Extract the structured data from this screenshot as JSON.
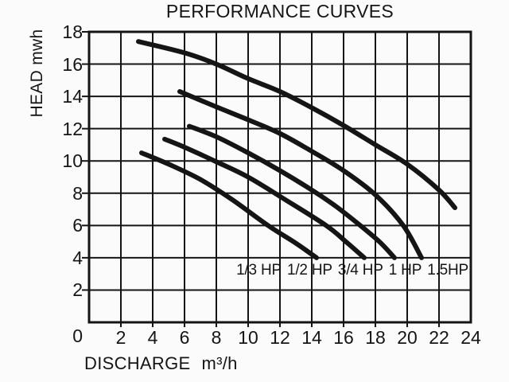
{
  "page": {
    "background": "#fbfbfb",
    "line_color": "#151515",
    "text_color": "#151515"
  },
  "chart_data": {
    "type": "line",
    "title": "PERFORMANCE CURVES",
    "xlabel": "DISCHARGE",
    "xlabel_unit": "m³/h",
    "ylabel": "HEAD mwh",
    "xlim": [
      0,
      24
    ],
    "ylim": [
      0,
      18
    ],
    "x_tick_step": 2,
    "y_tick_step": 2,
    "x_ticks": [
      0,
      2,
      4,
      6,
      8,
      10,
      12,
      14,
      16,
      18,
      20,
      22,
      24
    ],
    "y_ticks": [
      0,
      2,
      4,
      6,
      8,
      10,
      12,
      14,
      16,
      18
    ],
    "grid": true,
    "legend_position": "inside-bottom-right",
    "series": [
      {
        "name": "1/3 HP",
        "points": [
          [
            3.3,
            10.5
          ],
          [
            5,
            9.8
          ],
          [
            7,
            8.85
          ],
          [
            9,
            7.6
          ],
          [
            11.25,
            6.0
          ],
          [
            13,
            4.9
          ],
          [
            14.3,
            4.0
          ]
        ]
      },
      {
        "name": "1/2 HP",
        "points": [
          [
            4.75,
            11.35
          ],
          [
            6,
            10.85
          ],
          [
            8,
            9.95
          ],
          [
            10,
            9.0
          ],
          [
            12.25,
            7.65
          ],
          [
            14.9,
            6.0
          ],
          [
            16.2,
            4.95
          ],
          [
            17.3,
            4.0
          ]
        ]
      },
      {
        "name": "3/4 HP",
        "points": [
          [
            6.3,
            12.15
          ],
          [
            8,
            11.5
          ],
          [
            10,
            10.5
          ],
          [
            12,
            9.4
          ],
          [
            14,
            8.2
          ],
          [
            15.5,
            7.2
          ],
          [
            17.05,
            6.0
          ],
          [
            18.3,
            4.95
          ],
          [
            19.2,
            4.0
          ]
        ]
      },
      {
        "name": "1 HP",
        "points": [
          [
            5.7,
            14.3
          ],
          [
            8,
            13.35
          ],
          [
            10,
            12.55
          ],
          [
            12,
            11.7
          ],
          [
            14,
            10.6
          ],
          [
            16,
            9.4
          ],
          [
            18,
            7.9
          ],
          [
            19.75,
            6.0
          ],
          [
            20.9,
            4.0
          ]
        ]
      },
      {
        "name": "1.5HP",
        "points": [
          [
            3.1,
            17.4
          ],
          [
            6,
            16.7
          ],
          [
            8,
            16.0
          ],
          [
            10,
            15.1
          ],
          [
            12,
            14.3
          ],
          [
            14,
            13.3
          ],
          [
            16,
            12.2
          ],
          [
            18,
            11.0
          ],
          [
            20,
            9.8
          ],
          [
            22,
            8.2
          ],
          [
            23,
            7.1
          ]
        ]
      }
    ]
  }
}
